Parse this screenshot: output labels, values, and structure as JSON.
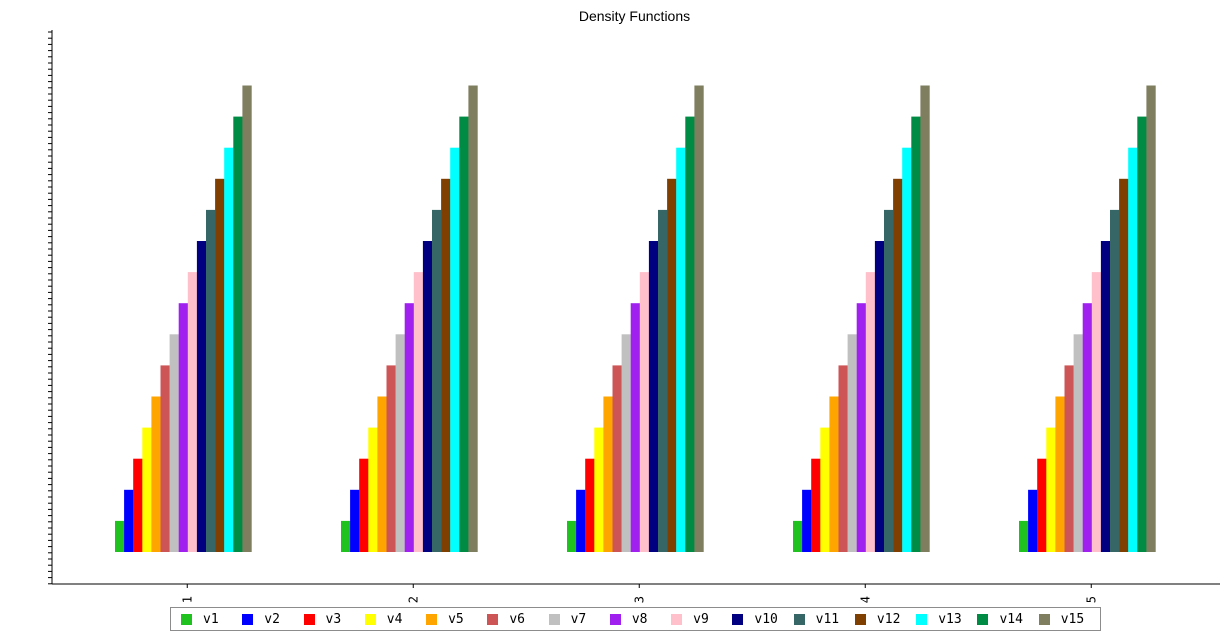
{
  "chart_data": {
    "type": "bar",
    "title": "Density Functions",
    "xlabel": "",
    "ylabel": "",
    "categories": [
      "1",
      "2",
      "3",
      "4",
      "5"
    ],
    "ylim": [
      0,
      16
    ],
    "grid": false,
    "legend_position": "bottom",
    "series": [
      {
        "name": "v1",
        "color": "#1fc21f",
        "values": [
          1,
          1,
          1,
          1,
          1
        ]
      },
      {
        "name": "v2",
        "color": "#0000ff",
        "values": [
          2,
          2,
          2,
          2,
          2
        ]
      },
      {
        "name": "v3",
        "color": "#ff0000",
        "values": [
          3,
          3,
          3,
          3,
          3
        ]
      },
      {
        "name": "v4",
        "color": "#ffff00",
        "values": [
          4,
          4,
          4,
          4,
          4
        ]
      },
      {
        "name": "v5",
        "color": "#ffa500",
        "values": [
          5,
          5,
          5,
          5,
          5
        ]
      },
      {
        "name": "v6",
        "color": "#cd5555",
        "values": [
          6,
          6,
          6,
          6,
          6
        ]
      },
      {
        "name": "v7",
        "color": "#c0c0c0",
        "values": [
          7,
          7,
          7,
          7,
          7
        ]
      },
      {
        "name": "v8",
        "color": "#a020f0",
        "values": [
          8,
          8,
          8,
          8,
          8
        ]
      },
      {
        "name": "v9",
        "color": "#ffc0cb",
        "values": [
          9,
          9,
          9,
          9,
          9
        ]
      },
      {
        "name": "v10",
        "color": "#000080",
        "values": [
          10,
          10,
          10,
          10,
          10
        ]
      },
      {
        "name": "v11",
        "color": "#366666",
        "values": [
          11,
          11,
          11,
          11,
          11
        ]
      },
      {
        "name": "v12",
        "color": "#7f3f00",
        "values": [
          12,
          12,
          12,
          12,
          12
        ]
      },
      {
        "name": "v13",
        "color": "#00ffff",
        "values": [
          13,
          13,
          13,
          13,
          13
        ]
      },
      {
        "name": "v14",
        "color": "#008b45",
        "values": [
          14,
          14,
          14,
          14,
          14
        ]
      },
      {
        "name": "v15",
        "color": "#7f7f5f",
        "values": [
          15,
          15,
          15,
          15,
          15
        ]
      }
    ]
  }
}
